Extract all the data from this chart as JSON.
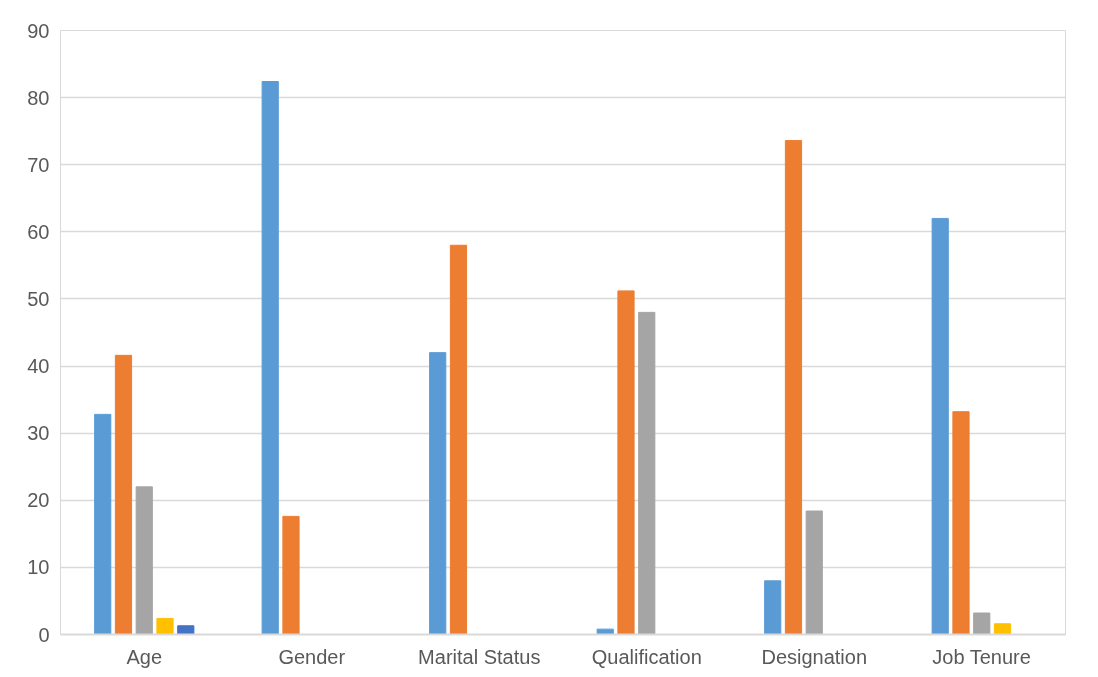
{
  "chart_data": {
    "type": "bar",
    "categories": [
      "Age",
      "Gender",
      "Marital Status",
      "Qualification",
      "Designation",
      "Job Tenure"
    ],
    "series": [
      {
        "color": "#5b9bd5",
        "values": [
          32.8,
          82.4,
          42,
          0.8,
          8,
          62
        ]
      },
      {
        "color": "#ed7d31",
        "values": [
          41.6,
          17.6,
          58,
          51.2,
          73.6,
          33.2
        ]
      },
      {
        "color": "#a5a5a5",
        "values": [
          22,
          null,
          null,
          48,
          18.4,
          3.2
        ]
      },
      {
        "color": "#ffc000",
        "values": [
          2.4,
          null,
          null,
          null,
          null,
          1.6
        ]
      },
      {
        "color": "#4472c4",
        "values": [
          1.3,
          null,
          null,
          null,
          null,
          null
        ]
      }
    ],
    "ylim": [
      0,
      90
    ],
    "yticks": [
      0,
      10,
      20,
      30,
      40,
      50,
      60,
      70,
      80,
      90
    ],
    "grid": "y"
  }
}
